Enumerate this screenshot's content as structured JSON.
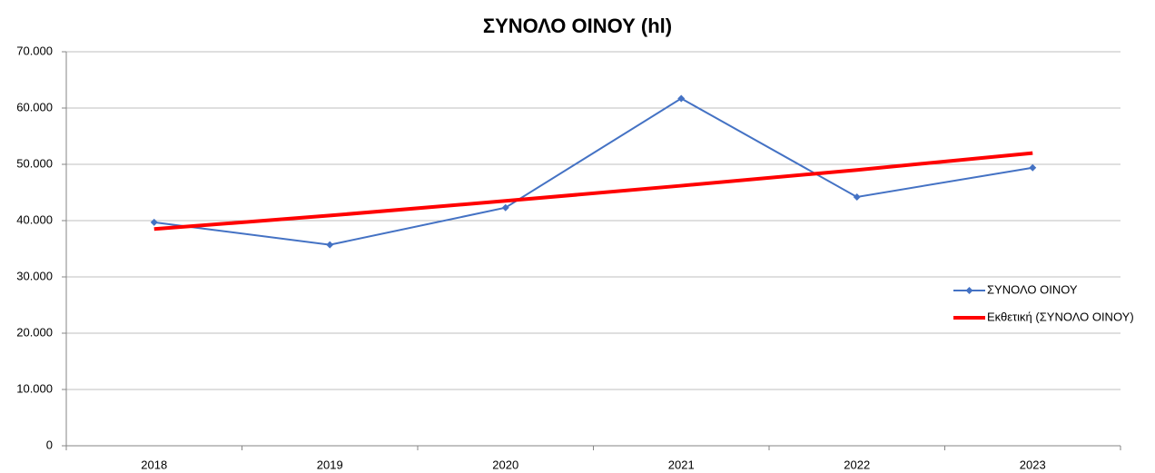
{
  "chart_data": {
    "type": "line",
    "title": "ΣΥΝΟΛΟ ΟΙΝΟΥ (hl)",
    "categories": [
      "2018",
      "2019",
      "2020",
      "2021",
      "2022",
      "2023"
    ],
    "series": [
      {
        "name": "ΣΥΝΟΛΟ ΟΙΝΟΥ",
        "color": "#4472c4",
        "values": [
          39700,
          35700,
          42300,
          61700,
          44200,
          49400
        ],
        "marker": "diamond"
      },
      {
        "name": "Εκθετική (ΣΥΝΟΛΟ ΟΙΝΟΥ)",
        "color": "#ff0000",
        "values": [
          38500,
          40900,
          43500,
          46200,
          49000,
          52000
        ],
        "marker": "none"
      }
    ],
    "ylim": [
      0,
      70000
    ],
    "yticks": [
      0,
      {
        "value": 10000,
        "label": "10.000"
      },
      {
        "value": 20000,
        "label": "20.000"
      },
      {
        "value": 30000,
        "label": "30.000"
      },
      {
        "value": 40000,
        "label": "40.000"
      },
      {
        "value": 50000,
        "label": "50.000"
      },
      {
        "value": 60000,
        "label": "60.000"
      },
      {
        "value": 70000,
        "label": "70.000"
      }
    ],
    "grid": true,
    "legend": "right"
  }
}
